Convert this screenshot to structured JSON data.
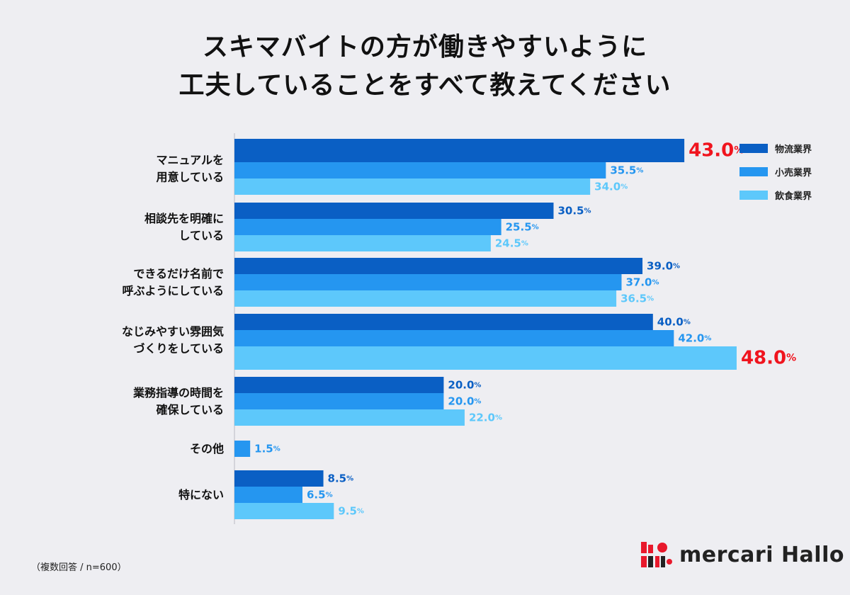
{
  "title": {
    "line1": "スキマバイトの方が働きやすいように",
    "line2": "工夫していることをすべて教えてください"
  },
  "colors": {
    "logistics": "#0a5fc4",
    "retail": "#2596f0",
    "food": "#5dc8fb",
    "highlight": "#f0141e",
    "logistics_label": "#0a5fc4",
    "retail_label": "#2596f0",
    "food_label": "#5dc8fb"
  },
  "chart_data": {
    "type": "bar",
    "orientation": "horizontal",
    "categories": [
      [
        "マニュアルを",
        "用意している"
      ],
      [
        "相談先を明確に",
        "している"
      ],
      [
        "できるだけ名前で",
        "呼ぶようにしている"
      ],
      [
        "なじみやすい雰囲気",
        "づくりをしている"
      ],
      [
        "業務指導の時間を",
        "確保している"
      ],
      [
        "その他"
      ],
      [
        "特にない"
      ]
    ],
    "series": [
      {
        "name": "物流業界",
        "values": [
          43.0,
          30.5,
          39.0,
          40.0,
          20.0,
          null,
          8.5
        ]
      },
      {
        "name": "小売業界",
        "values": [
          35.5,
          25.5,
          37.0,
          42.0,
          20.0,
          1.5,
          6.5
        ]
      },
      {
        "name": "飲食業界",
        "values": [
          34.0,
          24.5,
          36.5,
          48.0,
          22.0,
          null,
          9.5
        ]
      }
    ],
    "highlighted": [
      {
        "series": 0,
        "category": 0
      },
      {
        "series": 2,
        "category": 3
      }
    ],
    "unit": "%",
    "xlim": [
      0,
      50
    ],
    "grid": false,
    "legend": "top-right"
  },
  "footnote": "（複数回答 / n=600）",
  "brand": {
    "name": "mercari Hallo"
  }
}
